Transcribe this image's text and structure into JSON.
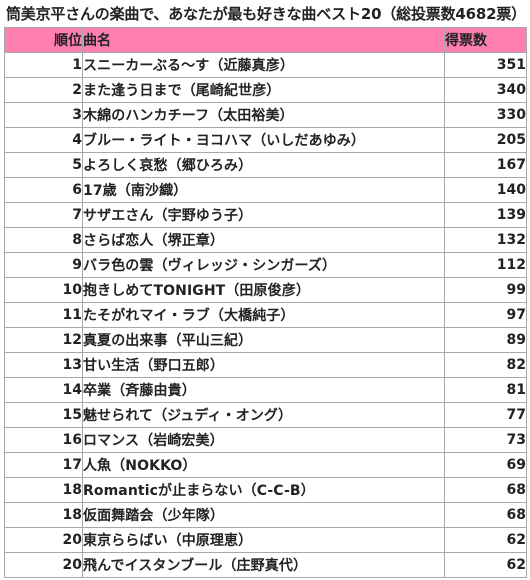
{
  "title": "筒美京平さんの楽曲で、あなたが最も好きな曲ベスト20（総投票数4682票）",
  "colors": {
    "header_bg": "#ff7fb0",
    "grid_line": "#a8a8a8",
    "text": "#222222"
  },
  "headers": {
    "rank": "順位",
    "song": "曲名",
    "votes": "得票数"
  },
  "rows": [
    {
      "rank": "1",
      "song": "スニーカーぶる～す（近藤真彦）",
      "votes": "351"
    },
    {
      "rank": "2",
      "song": "また逢う日まで（尾崎紀世彦）",
      "votes": "340"
    },
    {
      "rank": "3",
      "song": "木綿のハンカチーフ（太田裕美）",
      "votes": "330"
    },
    {
      "rank": "4",
      "song": "ブルー・ライト・ヨコハマ（いしだあゆみ）",
      "votes": "205"
    },
    {
      "rank": "5",
      "song": "よろしく哀愁（郷ひろみ）",
      "votes": "167"
    },
    {
      "rank": "6",
      "song": "17歳（南沙織）",
      "votes": "140"
    },
    {
      "rank": "7",
      "song": "サザエさん（宇野ゆう子）",
      "votes": "139"
    },
    {
      "rank": "8",
      "song": "さらば恋人（堺正章）",
      "votes": "132"
    },
    {
      "rank": "9",
      "song": "バラ色の雲（ヴィレッジ・シンガーズ）",
      "votes": "112"
    },
    {
      "rank": "10",
      "song": "抱きしめてTONIGHT（田原俊彦）",
      "votes": "99"
    },
    {
      "rank": "11",
      "song": "たそがれマイ・ラブ（大橋純子）",
      "votes": "97"
    },
    {
      "rank": "12",
      "song": "真夏の出来事（平山三紀）",
      "votes": "89"
    },
    {
      "rank": "13",
      "song": "甘い生活（野口五郎）",
      "votes": "82"
    },
    {
      "rank": "14",
      "song": "卒業（斉藤由貴）",
      "votes": "81"
    },
    {
      "rank": "15",
      "song": "魅せられて（ジュディ・オング）",
      "votes": "77"
    },
    {
      "rank": "16",
      "song": "ロマンス（岩崎宏美）",
      "votes": "73"
    },
    {
      "rank": "17",
      "song": "人魚（NOKKO）",
      "votes": "69"
    },
    {
      "rank": "18",
      "song": "Romanticが止まらない（C-C-B）",
      "votes": "68"
    },
    {
      "rank": "18",
      "song": "仮面舞踏会（少年隊）",
      "votes": "68"
    },
    {
      "rank": "20",
      "song": "東京ららばい（中原理恵）",
      "votes": "62"
    },
    {
      "rank": "20",
      "song": "飛んでイスタンブール（庄野真代）",
      "votes": "62"
    }
  ]
}
